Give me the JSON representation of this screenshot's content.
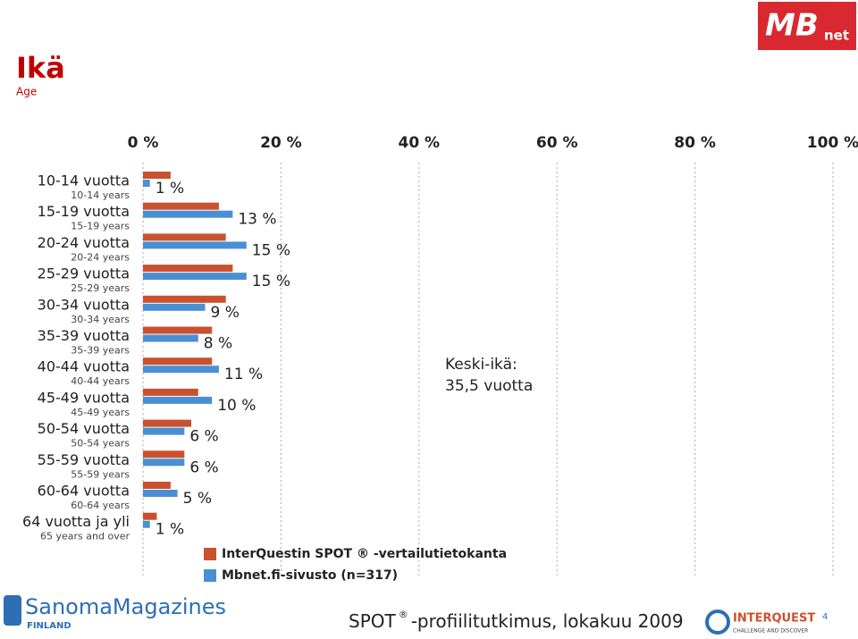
{
  "chart_data": {
    "type": "hbar",
    "title": "Ikä",
    "subtitle": "Age",
    "categories": [
      "10-14 vuotta",
      "15-19 vuotta",
      "20-24 vuotta",
      "25-29 vuotta",
      "30-34 vuotta",
      "35-39 vuotta",
      "40-44 vuotta",
      "45-49 vuotta",
      "50-54 vuotta",
      "55-59 vuotta",
      "60-64 vuotta",
      "64 vuotta ja yli"
    ],
    "category_translations": [
      "10-14 years",
      "15-19 years",
      "20-24 years",
      "25-29 years",
      "30-34 years",
      "35-39 years",
      "40-44 years",
      "45-49 years",
      "50-54 years",
      "55-59 years",
      "60-64 years",
      "65 years and over"
    ],
    "series": [
      {
        "name": "InterQuestin SPOT ® -vertailutietokanta",
        "color": "#c9512f",
        "values": [
          4,
          11,
          12,
          13,
          12,
          10,
          10,
          8,
          7,
          6,
          4,
          2
        ]
      },
      {
        "name": "Mbnet.fi-sivusto (n=317)",
        "color": "#4a8fd4",
        "values": [
          1,
          13,
          15,
          15,
          9,
          8,
          11,
          10,
          6,
          6,
          5,
          1
        ],
        "value_labels": [
          "1 %",
          "13 %",
          "15 %",
          "15 %",
          "9 %",
          "8 %",
          "11 %",
          "10 %",
          "6 %",
          "6 %",
          "5 %",
          "1 %"
        ]
      }
    ],
    "xlim": [
      0,
      100
    ],
    "xticks": [
      {
        "value": 0,
        "label": "0 %"
      },
      {
        "value": 20,
        "label": "20 %"
      },
      {
        "value": 40,
        "label": "40 %"
      },
      {
        "value": 60,
        "label": "60 %"
      },
      {
        "value": 80,
        "label": "80 %"
      },
      {
        "value": 100,
        "label": "100 %"
      }
    ],
    "grid": true,
    "annotation": [
      "Keski-ikä:",
      "35,5 vuotta"
    ]
  },
  "footer": [
    "SPOT",
    "®",
    "-profiilitutkimus, lokakuu 2009"
  ],
  "page_number": "4",
  "logos": {
    "mb": [
      "MB",
      "net"
    ],
    "sanoma": [
      "SanomaMagazines",
      "FINLAND"
    ],
    "interquest": [
      "INTERQUEST",
      "CHALLENGE AND DISCOVER"
    ]
  }
}
